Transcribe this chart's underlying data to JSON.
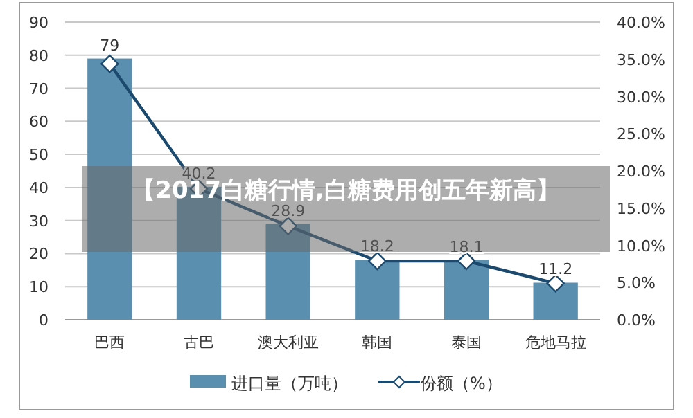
{
  "chart_data": {
    "type": "bar",
    "title": "【2017白糖行情,白糖费用创五年新高】",
    "categories": [
      "巴西",
      "古巴",
      "澳大利亚",
      "韩国",
      "泰国",
      "危地马拉"
    ],
    "series": [
      {
        "name": "进口量（万吨）",
        "color": "#5b8fb0",
        "values": [
          79,
          40.2,
          28.9,
          18.2,
          18.1,
          11.2
        ],
        "value_labels": [
          "79",
          "40.2",
          "28.9",
          "18.2",
          "18.1",
          "11.2"
        ]
      },
      {
        "name": "份额（%）",
        "type": "line",
        "axis": "y2",
        "color": "#1b4a6e",
        "marker": "diamond",
        "values": [
          34.4,
          17.6,
          12.6,
          7.9,
          7.9,
          4.9
        ]
      }
    ],
    "ylim": [
      0,
      90
    ],
    "yticks": [
      0,
      10,
      20,
      30,
      40,
      50,
      60,
      70,
      80,
      90
    ],
    "y2lim": [
      0,
      40
    ],
    "y2ticks": [
      {
        "value": 0,
        "label": "0.0%"
      },
      {
        "value": 5,
        "label": "5.0%"
      },
      {
        "value": 10,
        "label": "10.0%"
      },
      {
        "value": 15,
        "label": "15.0%"
      },
      {
        "value": 20,
        "label": "20.0%"
      },
      {
        "value": 25,
        "label": "25.0%"
      },
      {
        "value": 30,
        "label": "30.0%"
      },
      {
        "value": 35,
        "label": "35.0%"
      },
      {
        "value": 40,
        "label": "40.0%"
      }
    ],
    "grid": "y",
    "legend": "bottom"
  }
}
